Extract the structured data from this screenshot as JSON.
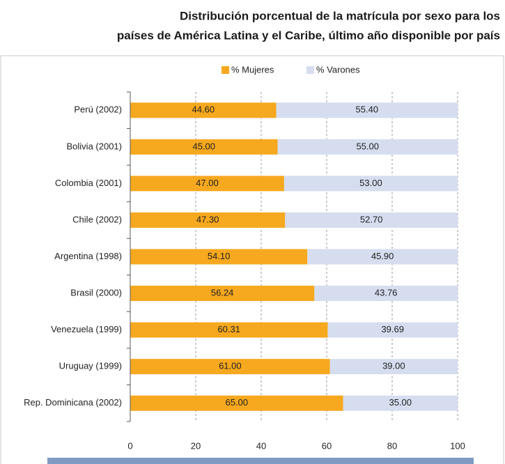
{
  "chart_data": {
    "type": "stacked_barh",
    "title": [
      "Distribución porcentual de la matrícula por sexo para los",
      "países de América Latina y el Caribe, último año disponible por país"
    ],
    "categories": [
      "Perú (2002)",
      "Bolivia (2001)",
      "Colombia (2001)",
      "Chile (2002)",
      "Argentina (1998)",
      "Brasil (2000)",
      "Venezuela (1999)",
      "Uruguay (1999)",
      "Rep. Dominicana (2002)"
    ],
    "series": [
      {
        "name": "% Mujeres",
        "color": "#f6a81e",
        "values": [
          44.6,
          45,
          47,
          47.3,
          54.1,
          56.24,
          60.31,
          61,
          65
        ],
        "value_labels": [
          "44.60",
          "45.00",
          "47.00",
          "47.30",
          "54.10",
          "56.24",
          "60.31",
          "61.00",
          "65.00"
        ]
      },
      {
        "name": "% Varones",
        "color": "#d5ddef",
        "values": [
          55.4,
          55,
          53,
          52.7,
          45.9,
          43.76,
          39.69,
          39,
          35
        ],
        "value_labels": [
          "55.40",
          "55.00",
          "53.00",
          "52.70",
          "45.90",
          "43.76",
          "39.69",
          "39.00",
          "35.00"
        ]
      }
    ],
    "xlim": [
      0,
      100
    ],
    "xticks": [
      0,
      20,
      40,
      60,
      80,
      100
    ],
    "grid": true,
    "legend": "top"
  }
}
